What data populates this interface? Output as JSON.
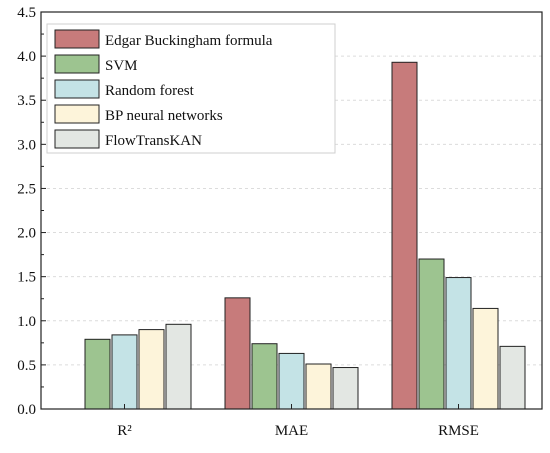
{
  "chart_data": {
    "type": "bar",
    "title": "",
    "xlabel": "",
    "ylabel": "",
    "categories": [
      "R²",
      "MAE",
      "RMSE"
    ],
    "ylim": [
      0,
      4.5
    ],
    "yticks": [
      "0.0",
      "0.5",
      "1.0",
      "1.5",
      "2.0",
      "2.5",
      "3.0",
      "3.5",
      "4.0",
      "4.5"
    ],
    "grid": "horizontal dashed",
    "legend_position": "top-left",
    "series": [
      {
        "name": "Edgar Buckingham formula",
        "color": "#c77b7b",
        "values": [
          null,
          1.26,
          3.93
        ]
      },
      {
        "name": "SVM",
        "color": "#9dc490",
        "values": [
          0.79,
          0.74,
          1.7
        ]
      },
      {
        "name": "Random forest",
        "color": "#c4e3e6",
        "values": [
          0.84,
          0.63,
          1.49
        ]
      },
      {
        "name": "BP neural networks",
        "color": "#fdf4da",
        "values": [
          0.9,
          0.51,
          1.14
        ]
      },
      {
        "name": "FlowTransKAN",
        "color": "#e3e7e3",
        "values": [
          0.96,
          0.47,
          0.71
        ]
      }
    ]
  }
}
